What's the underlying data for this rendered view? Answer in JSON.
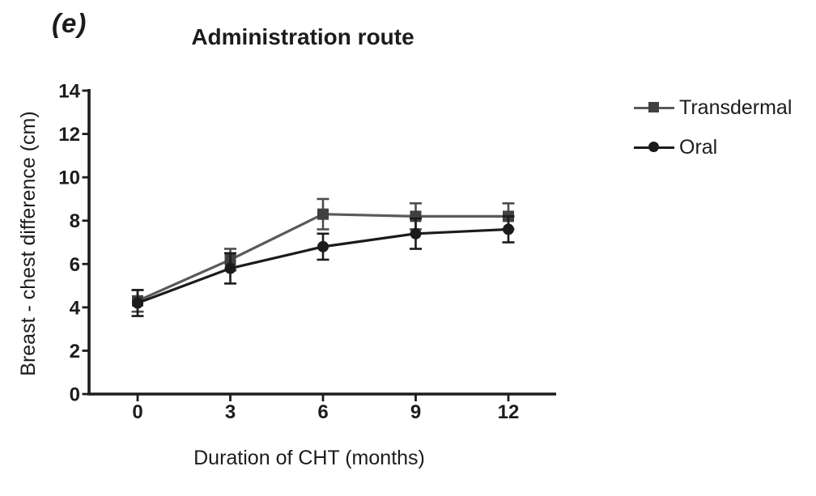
{
  "chart_data": {
    "type": "line",
    "panel_label": "(e)",
    "title": "Administration route",
    "xlabel": "Duration of CHT (months)",
    "ylabel": "Breast - chest difference (cm)",
    "x": [
      0,
      3,
      6,
      9,
      12
    ],
    "ylim": [
      0,
      14
    ],
    "ytick_step": 2,
    "grid": false,
    "error_bars": true,
    "legend_position": "right",
    "ink_color": "#1c1c1c",
    "series": [
      {
        "name": "Transdermal",
        "marker": "square",
        "line_color": "#5a5a5a",
        "marker_color": "#404040",
        "error_color": "#4d4d4d",
        "values": [
          4.3,
          6.2,
          8.3,
          8.2,
          8.2
        ],
        "errors": [
          0.5,
          0.5,
          0.7,
          0.6,
          0.6
        ]
      },
      {
        "name": "Oral",
        "marker": "circle",
        "line_color": "#1b1b1b",
        "marker_color": "#1b1b1b",
        "error_color": "#1b1b1b",
        "values": [
          4.2,
          5.8,
          6.8,
          7.4,
          7.6
        ],
        "errors": [
          0.6,
          0.7,
          0.6,
          0.7,
          0.6
        ]
      }
    ]
  }
}
